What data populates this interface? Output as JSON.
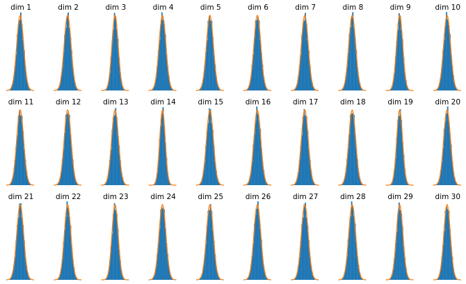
{
  "chart_data": {
    "type": "histogram-grid",
    "rows": 3,
    "cols": 10,
    "bar_color": "#1f77b4",
    "curve_color": "#ff7f0e",
    "grid": false,
    "axes_visible": false,
    "bins": 24,
    "x_range": [
      -4,
      4
    ],
    "panels": [
      {
        "title": "dim 1",
        "mean": 0.0,
        "sd": 1.0,
        "peak": 1.0
      },
      {
        "title": "dim 2",
        "mean": 0.0,
        "sd": 1.0,
        "peak": 1.0
      },
      {
        "title": "dim 3",
        "mean": 0.0,
        "sd": 0.9,
        "peak": 1.0
      },
      {
        "title": "dim 4",
        "mean": 0.0,
        "sd": 1.0,
        "peak": 1.0
      },
      {
        "title": "dim 5",
        "mean": 0.0,
        "sd": 1.0,
        "peak": 1.0
      },
      {
        "title": "dim 6",
        "mean": 0.0,
        "sd": 1.0,
        "peak": 1.0
      },
      {
        "title": "dim 7",
        "mean": 0.0,
        "sd": 1.0,
        "peak": 1.0
      },
      {
        "title": "dim 8",
        "mean": 0.0,
        "sd": 1.0,
        "peak": 1.0
      },
      {
        "title": "dim 9",
        "mean": 0.0,
        "sd": 0.9,
        "peak": 1.0
      },
      {
        "title": "dim 10",
        "mean": 0.0,
        "sd": 1.0,
        "peak": 1.0
      },
      {
        "title": "dim 11",
        "mean": 0.0,
        "sd": 1.0,
        "peak": 1.0
      },
      {
        "title": "dim 12",
        "mean": 0.0,
        "sd": 1.0,
        "peak": 1.0
      },
      {
        "title": "dim 13",
        "mean": 0.0,
        "sd": 1.0,
        "peak": 1.0
      },
      {
        "title": "dim 14",
        "mean": 0.0,
        "sd": 0.8,
        "peak": 1.0
      },
      {
        "title": "dim 15",
        "mean": 0.0,
        "sd": 1.0,
        "peak": 1.0
      },
      {
        "title": "dim 16",
        "mean": 0.0,
        "sd": 1.0,
        "peak": 1.0
      },
      {
        "title": "dim 17",
        "mean": 0.0,
        "sd": 1.0,
        "peak": 1.0
      },
      {
        "title": "dim 18",
        "mean": 0.0,
        "sd": 1.0,
        "peak": 1.0
      },
      {
        "title": "dim 19",
        "mean": 0.0,
        "sd": 0.85,
        "peak": 1.0
      },
      {
        "title": "dim 20",
        "mean": 0.0,
        "sd": 1.0,
        "peak": 1.0
      },
      {
        "title": "dim 21",
        "mean": 0.0,
        "sd": 1.0,
        "peak": 1.0
      },
      {
        "title": "dim 22",
        "mean": 0.0,
        "sd": 0.95,
        "peak": 1.0
      },
      {
        "title": "dim 23",
        "mean": 0.0,
        "sd": 0.9,
        "peak": 1.0
      },
      {
        "title": "dim 24",
        "mean": 0.0,
        "sd": 1.0,
        "peak": 1.0
      },
      {
        "title": "dim 25",
        "mean": 0.0,
        "sd": 1.0,
        "peak": 1.0
      },
      {
        "title": "dim 26",
        "mean": 0.0,
        "sd": 1.0,
        "peak": 1.0
      },
      {
        "title": "dim 27",
        "mean": 0.0,
        "sd": 1.0,
        "peak": 1.0
      },
      {
        "title": "dim 28",
        "mean": 0.0,
        "sd": 1.0,
        "peak": 1.0
      },
      {
        "title": "dim 29",
        "mean": 0.0,
        "sd": 0.95,
        "peak": 1.0
      },
      {
        "title": "dim 30",
        "mean": 0.0,
        "sd": 0.95,
        "peak": 1.0
      }
    ]
  }
}
